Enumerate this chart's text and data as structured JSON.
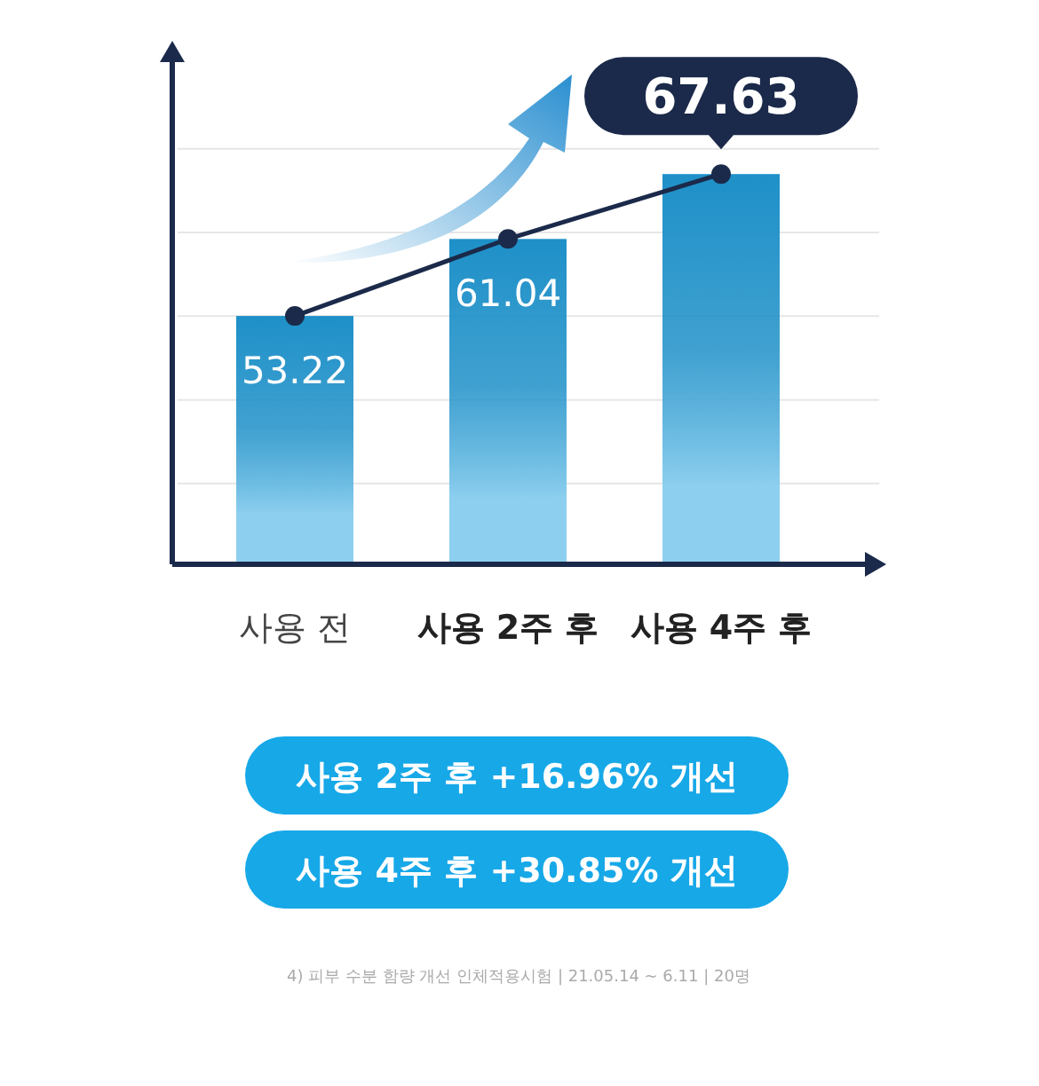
{
  "chart_data": {
    "type": "bar",
    "categories": [
      "사용 전",
      "사용 2주 후",
      "사용 4주 후"
    ],
    "series": [
      {
        "color": "#1e90c8",
        "values": [
          53.22,
          61.04,
          67.63
        ],
        "value_labels": [
          "53.22",
          "61.04",
          "67.63"
        ]
      },
      {
        "type": "line",
        "color": "#1b2a4a",
        "values": [
          53.22,
          61.04,
          67.63
        ]
      }
    ],
    "ylim": [
      28,
      79
    ],
    "yticks": [
      {
        "value": 36.2,
        "label": null
      },
      {
        "value": 44.7,
        "label": null
      },
      {
        "value": 53.2,
        "label": null
      },
      {
        "value": 61.7,
        "label": null
      },
      {
        "value": 70.2,
        "label": null
      }
    ],
    "grid": "y",
    "tick_labels": "x",
    "marker": "circle",
    "annotations": [
      "사용 2주 후 +16.96% 개선",
      "사용 4주 후 +30.85% 개선",
      "4) 피부 수분 함량 개선 인체적용시험 | 21.05.14 ~ 6.11 | 20명"
    ]
  }
}
